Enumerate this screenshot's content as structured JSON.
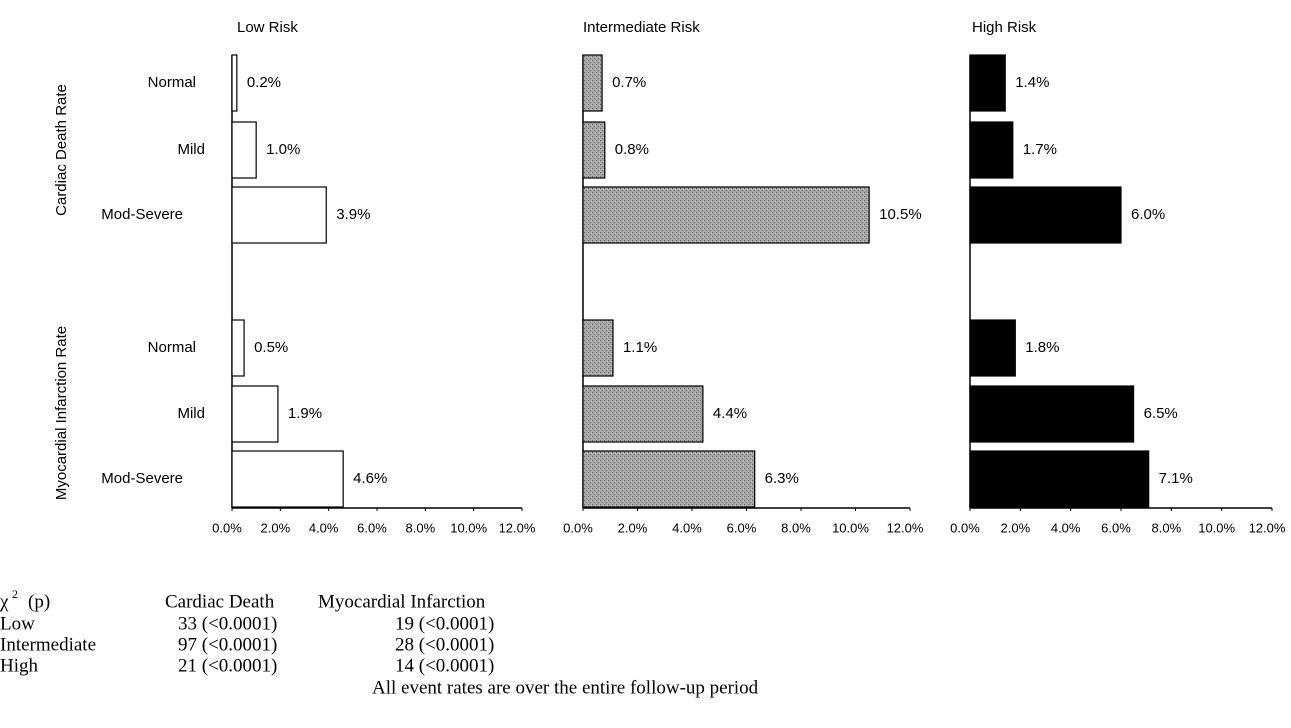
{
  "chart_data": [
    {
      "type": "hbar",
      "title": "Low Risk",
      "color": "#ffffff",
      "groups": [
        {
          "name": "Cardiac Death Rate",
          "categories": [
            "Normal",
            "Mild",
            "Mod-Severe"
          ]
        },
        {
          "name": "Myocardial Infarction Rate",
          "categories": [
            "Normal",
            "Mild",
            "Mod-Severe"
          ]
        }
      ],
      "values": [
        0.2,
        1.0,
        3.9,
        0.5,
        1.9,
        4.6
      ],
      "value_labels": [
        "0.2%",
        "1.0%",
        "3.9%",
        "0.5%",
        "1.9%",
        "4.6%"
      ],
      "xlim": [
        0,
        12
      ],
      "xticks": [
        {
          "value": 0,
          "label": "0.0%"
        },
        {
          "value": 2,
          "label": "2.0%"
        },
        {
          "value": 4,
          "label": "4.0%"
        },
        {
          "value": 6,
          "label": "6.0%"
        },
        {
          "value": 8,
          "label": "8.0%"
        },
        {
          "value": 10,
          "label": "10.0%"
        },
        {
          "value": 12,
          "label": "12.0%"
        }
      ]
    },
    {
      "type": "hbar",
      "title": "Intermediate Risk",
      "color": "#a6a6a6",
      "values": [
        0.7,
        0.8,
        10.5,
        1.1,
        4.4,
        6.3
      ],
      "value_labels": [
        "0.7%",
        "0.8%",
        "10.5%",
        "1.1%",
        "4.4%",
        "6.3%"
      ],
      "xlim": [
        0,
        12
      ],
      "xticks": [
        {
          "value": 0,
          "label": "0.0%"
        },
        {
          "value": 2,
          "label": "2.0%"
        },
        {
          "value": 4,
          "label": "4.0%"
        },
        {
          "value": 6,
          "label": "6.0%"
        },
        {
          "value": 8,
          "label": "8.0%"
        },
        {
          "value": 10,
          "label": "10.0%"
        },
        {
          "value": 12,
          "label": "12.0%"
        }
      ]
    },
    {
      "type": "hbar",
      "title": "High Risk",
      "color": "#000000",
      "values": [
        1.4,
        1.7,
        6.0,
        1.8,
        6.5,
        7.1
      ],
      "value_labels": [
        "1.4%",
        "1.7%",
        "6.0%",
        "1.8%",
        "6.5%",
        "7.1%"
      ],
      "xlim": [
        0,
        12
      ],
      "xticks": [
        {
          "value": 0,
          "label": "0.0%"
        },
        {
          "value": 2,
          "label": "2.0%"
        },
        {
          "value": 4,
          "label": "4.0%"
        },
        {
          "value": 6,
          "label": "6.0%"
        },
        {
          "value": 8,
          "label": "8.0%"
        },
        {
          "value": 10,
          "label": "10.0%"
        },
        {
          "value": 12,
          "label": "12.0%"
        }
      ]
    }
  ],
  "table": {
    "symbol": "χ",
    "exponent": "2",
    "suffix": "(p)",
    "columns": [
      "Cardiac Death",
      "Myocardial Infarction"
    ],
    "rows": [
      [
        "Low",
        "33 (<0.0001)",
        "19 (<0.0001)"
      ],
      [
        "Intermediate",
        "97 (<0.0001)",
        "28 (<0.0001)"
      ],
      [
        "High",
        "21 (<0.0001)",
        "14 (<0.0001)"
      ]
    ],
    "note": "All event rates are over the entire follow-up period"
  }
}
